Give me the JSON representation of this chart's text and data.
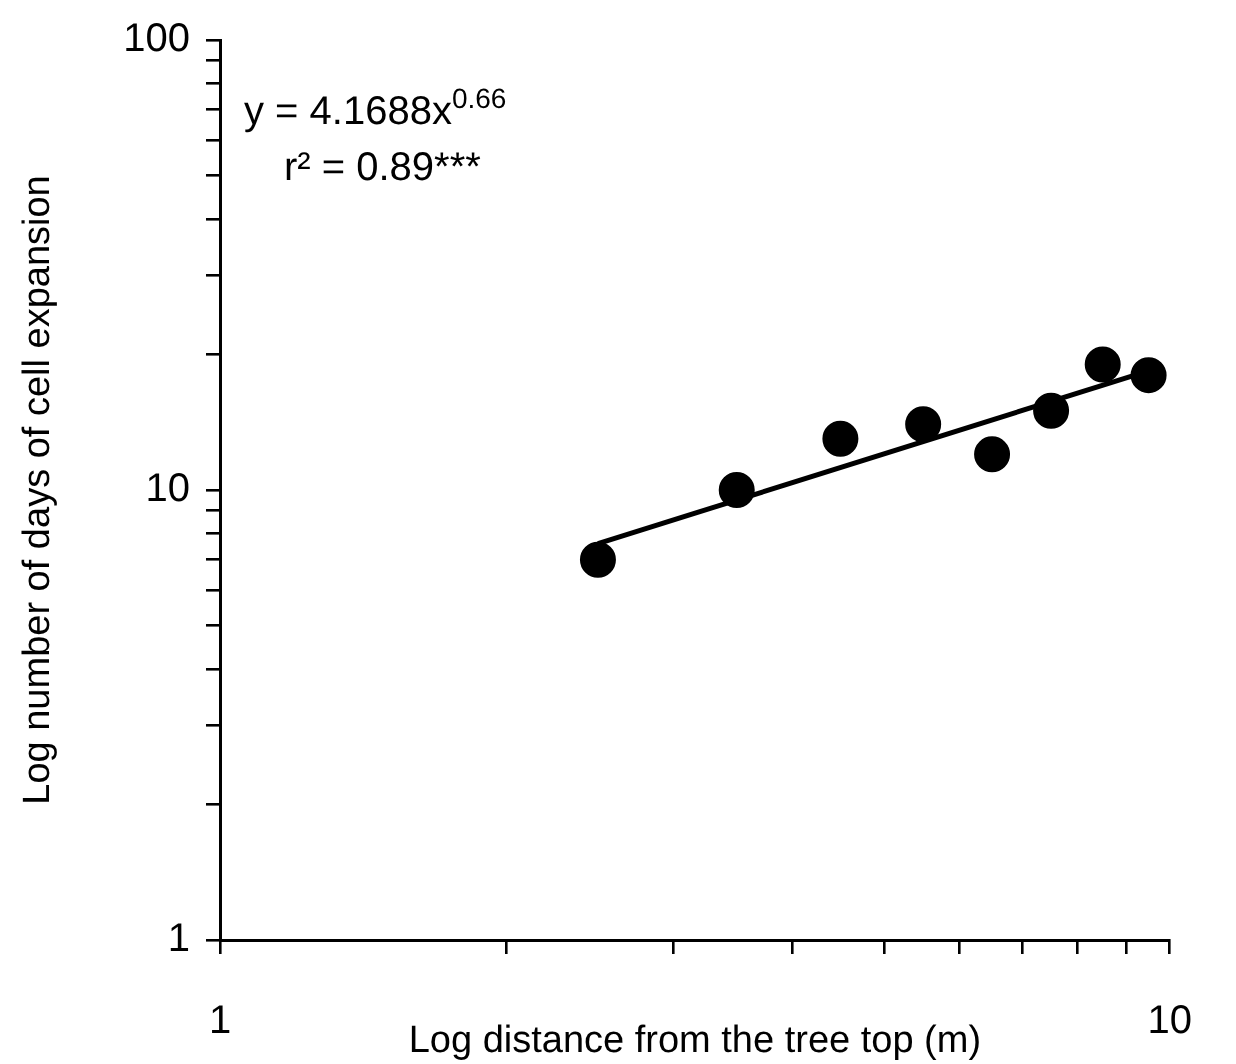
{
  "chart_data": {
    "type": "scatter",
    "xlabel": "Log distance from the tree top (m)",
    "ylabel": "Log number of days of cell expansion",
    "log": "xy",
    "marker": "circle",
    "xlim": [
      1,
      10
    ],
    "ylim": [
      1,
      100
    ],
    "xticks": [
      1,
      {
        "value": 2,
        "label": null
      },
      {
        "value": 3,
        "label": null
      },
      {
        "value": 4,
        "label": null
      },
      {
        "value": 5,
        "label": null
      },
      {
        "value": 6,
        "label": null
      },
      {
        "value": 7,
        "label": null
      },
      {
        "value": 8,
        "label": null
      },
      {
        "value": 9,
        "label": null
      },
      10
    ],
    "yticks": [
      1,
      {
        "value": 2,
        "label": null
      },
      {
        "value": 3,
        "label": null
      },
      {
        "value": 4,
        "label": null
      },
      {
        "value": 5,
        "label": null
      },
      {
        "value": 6,
        "label": null
      },
      {
        "value": 7,
        "label": null
      },
      {
        "value": 8,
        "label": null
      },
      {
        "value": 9,
        "label": null
      },
      10,
      {
        "value": 20,
        "label": null
      },
      {
        "value": 30,
        "label": null
      },
      {
        "value": 40,
        "label": null
      },
      {
        "value": 50,
        "label": null
      },
      {
        "value": 60,
        "label": null
      },
      {
        "value": 70,
        "label": null
      },
      {
        "value": 80,
        "label": null
      },
      {
        "value": 90,
        "label": null
      },
      100
    ],
    "series": [
      {
        "type": "scatter",
        "color": "#000000",
        "x": [
          2.5,
          3.5,
          4.5,
          5.5,
          6.5,
          7.5,
          8.5,
          9.5
        ],
        "values": [
          7,
          10,
          13,
          14,
          12,
          15,
          19,
          18
        ]
      },
      {
        "type": "line",
        "color": "#000000",
        "marker": "none",
        "x": [
          2.5,
          9.5
        ],
        "values": [
          7.6,
          18.4
        ]
      }
    ],
    "annotations": [
      "y = 4.1688x$^{0.66}$",
      "r² = 0.89***"
    ]
  }
}
